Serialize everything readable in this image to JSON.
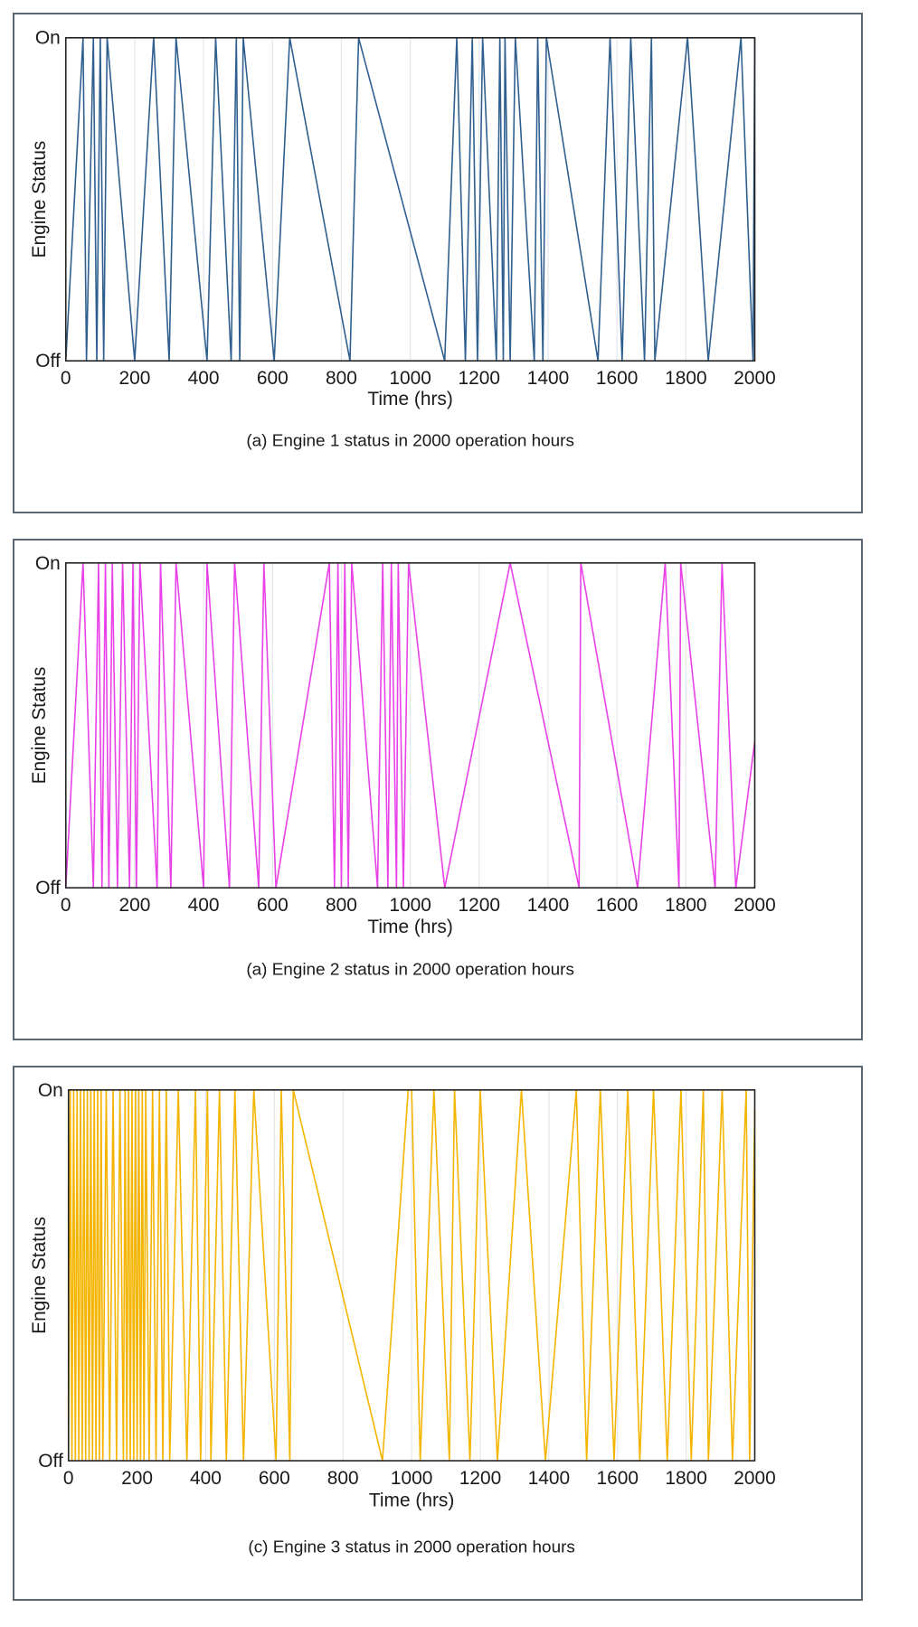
{
  "chart_data": [
    {
      "type": "line",
      "caption": "(a) Engine 1 status in 2000 operation hours",
      "xlabel": "Time (hrs)",
      "ylabel": "Engine  Status",
      "xlim": [
        0,
        2000
      ],
      "x_ticks": [
        0,
        200,
        400,
        600,
        800,
        1000,
        1200,
        1400,
        1600,
        1800,
        2000
      ],
      "y_ticks": [
        "Off",
        "On"
      ],
      "grid": "vertical",
      "series": [
        {
          "color": "#2f5f8f",
          "x": [
            0,
            50,
            60,
            80,
            90,
            100,
            110,
            120,
            200,
            255,
            300,
            320,
            410,
            435,
            480,
            495,
            505,
            515,
            605,
            650,
            825,
            850,
            1100,
            1135,
            1160,
            1180,
            1195,
            1210,
            1250,
            1260,
            1270,
            1275,
            1290,
            1305,
            1360,
            1370,
            1385,
            1395,
            1545,
            1580,
            1615,
            1640,
            1680,
            1700,
            1710,
            1805,
            1865,
            1960,
            1995,
            2000
          ],
          "y": [
            0,
            1,
            0,
            1,
            0,
            1,
            0,
            1,
            0,
            1,
            0,
            1,
            0,
            1,
            0,
            1,
            0,
            1,
            0,
            1,
            0,
            1,
            0,
            1,
            0,
            1,
            0,
            1,
            0,
            1,
            0,
            1,
            0,
            1,
            0,
            1,
            0,
            1,
            0,
            1,
            0,
            1,
            0,
            1,
            0,
            1,
            0,
            1,
            0,
            1
          ]
        }
      ]
    },
    {
      "type": "line",
      "caption": "(a) Engine 2 status in 2000 operation hours",
      "xlabel": "Time (hrs)",
      "ylabel": "Engine Status",
      "xlim": [
        0,
        2000
      ],
      "x_ticks": [
        0,
        200,
        400,
        600,
        800,
        1000,
        1200,
        1400,
        1600,
        1800,
        2000
      ],
      "y_ticks": [
        "Off",
        "On"
      ],
      "grid": "vertical",
      "series": [
        {
          "color": "#e841e8",
          "x": [
            0,
            50,
            80,
            95,
            105,
            115,
            125,
            135,
            150,
            165,
            185,
            195,
            205,
            215,
            265,
            275,
            305,
            320,
            400,
            410,
            475,
            490,
            560,
            575,
            610,
            765,
            780,
            790,
            800,
            810,
            820,
            830,
            905,
            920,
            935,
            945,
            960,
            965,
            980,
            995,
            1100,
            1290,
            1490,
            1495,
            1660,
            1740,
            1780,
            1785,
            1885,
            1905,
            1945,
            2000
          ],
          "y": [
            0,
            1,
            0,
            1,
            0,
            1,
            0,
            1,
            0,
            1,
            0,
            1,
            0,
            1,
            0,
            1,
            0,
            1,
            0,
            1,
            0,
            1,
            0,
            1,
            0,
            1,
            0,
            1,
            0,
            1,
            0,
            1,
            0,
            1,
            0,
            1,
            0,
            1,
            0,
            1,
            0,
            1,
            0,
            1,
            0,
            1,
            0,
            1,
            0,
            1,
            0,
            0.45
          ]
        }
      ]
    },
    {
      "type": "line",
      "caption": "(c) Engine 3 status in 2000 operation hours",
      "xlabel": "Time (hrs)",
      "ylabel": "Engine Status",
      "xlim": [
        0,
        2000
      ],
      "x_ticks": [
        0,
        200,
        400,
        600,
        800,
        1000,
        1200,
        1400,
        1600,
        1800,
        2000
      ],
      "y_ticks": [
        "Off",
        "On"
      ],
      "grid": "vertical",
      "series": [
        {
          "color": "#f5b400",
          "x": [
            0,
            5,
            10,
            15,
            20,
            25,
            30,
            35,
            40,
            45,
            50,
            55,
            60,
            65,
            70,
            75,
            80,
            85,
            90,
            95,
            100,
            110,
            120,
            130,
            140,
            150,
            160,
            165,
            170,
            175,
            180,
            185,
            190,
            195,
            200,
            205,
            210,
            215,
            220,
            225,
            235,
            245,
            255,
            265,
            275,
            285,
            295,
            320,
            345,
            370,
            385,
            405,
            415,
            440,
            460,
            485,
            510,
            540,
            605,
            620,
            645,
            655,
            915,
            990,
            1000,
            1025,
            1065,
            1110,
            1125,
            1170,
            1200,
            1250,
            1320,
            1390,
            1480,
            1510,
            1550,
            1590,
            1630,
            1665,
            1705,
            1745,
            1785,
            1815,
            1850,
            1865,
            1905,
            1935,
            1975,
            1985,
            2000
          ],
          "y": [
            0,
            1,
            0,
            1,
            0,
            1,
            0,
            1,
            0,
            1,
            0,
            1,
            0,
            1,
            0,
            1,
            0,
            1,
            0,
            1,
            0,
            1,
            0,
            1,
            0,
            1,
            0,
            1,
            0,
            1,
            0,
            1,
            0,
            1,
            0,
            1,
            0,
            1,
            0,
            1,
            0,
            1,
            0,
            1,
            0,
            1,
            0,
            1,
            0,
            1,
            0,
            1,
            0,
            1,
            0,
            1,
            0,
            1,
            0,
            1,
            0,
            1,
            0,
            1,
            1,
            0,
            1,
            0,
            1,
            0,
            1,
            0,
            1,
            0,
            1,
            0,
            1,
            0,
            1,
            0,
            1,
            0,
            1,
            0,
            1,
            0,
            1,
            0,
            1,
            0,
            0.95
          ]
        }
      ]
    }
  ]
}
